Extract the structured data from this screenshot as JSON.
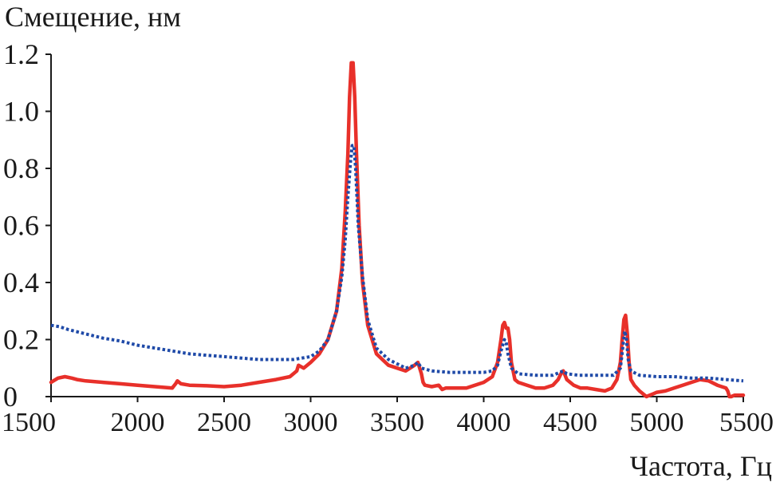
{
  "chart_data": {
    "type": "line",
    "title": "",
    "ylabel": "Смещение, нм",
    "xlabel": "Частота, Гц",
    "xlim": [
      1500,
      5500
    ],
    "ylim": [
      0,
      1.2
    ],
    "x_ticks": [
      "1500",
      "2000",
      "2500",
      "3000",
      "3500",
      "4000",
      "4500",
      "5000",
      "5500"
    ],
    "y_ticks": [
      "0",
      "0.2",
      "0.4",
      "0.6",
      "0.8",
      "1.0",
      "1.2"
    ],
    "grid": false,
    "legend": "none",
    "series": [
      {
        "color": "#e8302a",
        "style": "solid",
        "x": [
          1500,
          1540,
          1580,
          1620,
          1650,
          1700,
          1800,
          1900,
          2000,
          2100,
          2200,
          2220,
          2230,
          2250,
          2300,
          2400,
          2500,
          2600,
          2700,
          2800,
          2880,
          2920,
          2930,
          2960,
          3000,
          3050,
          3100,
          3150,
          3180,
          3200,
          3215,
          3225,
          3235,
          3245,
          3255,
          3265,
          3280,
          3300,
          3330,
          3380,
          3450,
          3550,
          3600,
          3620,
          3640,
          3650,
          3660,
          3700,
          3740,
          3760,
          3780,
          3800,
          3900,
          4000,
          4050,
          4080,
          4100,
          4110,
          4120,
          4130,
          4140,
          4150,
          4160,
          4180,
          4200,
          4250,
          4300,
          4350,
          4400,
          4430,
          4450,
          4460,
          4480,
          4520,
          4560,
          4600,
          4650,
          4700,
          4740,
          4770,
          4790,
          4800,
          4810,
          4820,
          4830,
          4840,
          4850,
          4870,
          4900,
          4920,
          4940,
          4960,
          4980,
          5000,
          5050,
          5100,
          5150,
          5200,
          5250,
          5300,
          5350,
          5400,
          5410,
          5420,
          5430,
          5450,
          5500
        ],
        "y": [
          0.05,
          0.065,
          0.07,
          0.065,
          0.06,
          0.055,
          0.05,
          0.045,
          0.04,
          0.035,
          0.03,
          0.045,
          0.055,
          0.045,
          0.04,
          0.038,
          0.035,
          0.04,
          0.05,
          0.06,
          0.07,
          0.09,
          0.11,
          0.1,
          0.12,
          0.15,
          0.2,
          0.3,
          0.45,
          0.65,
          0.85,
          1.05,
          1.17,
          1.17,
          1.05,
          0.85,
          0.6,
          0.4,
          0.25,
          0.15,
          0.11,
          0.09,
          0.11,
          0.12,
          0.08,
          0.05,
          0.04,
          0.035,
          0.04,
          0.025,
          0.03,
          0.03,
          0.03,
          0.05,
          0.07,
          0.12,
          0.2,
          0.25,
          0.26,
          0.24,
          0.24,
          0.2,
          0.12,
          0.06,
          0.05,
          0.04,
          0.03,
          0.03,
          0.04,
          0.06,
          0.085,
          0.09,
          0.06,
          0.04,
          0.03,
          0.03,
          0.025,
          0.02,
          0.03,
          0.06,
          0.12,
          0.2,
          0.27,
          0.285,
          0.22,
          0.12,
          0.06,
          0.04,
          0.02,
          0.01,
          0.0,
          0.005,
          0.01,
          0.015,
          0.02,
          0.03,
          0.04,
          0.05,
          0.06,
          0.055,
          0.04,
          0.03,
          0.02,
          0.0,
          0.0,
          0.005,
          0.005
        ]
      },
      {
        "color": "#1f4aa8",
        "style": "dotted",
        "x": [
          1500,
          1550,
          1600,
          1700,
          1800,
          1900,
          2000,
          2100,
          2200,
          2300,
          2400,
          2500,
          2600,
          2700,
          2800,
          2900,
          3000,
          3050,
          3100,
          3150,
          3180,
          3200,
          3215,
          3230,
          3240,
          3250,
          3260,
          3275,
          3300,
          3330,
          3380,
          3450,
          3550,
          3600,
          3620,
          3640,
          3700,
          3800,
          3900,
          4000,
          4050,
          4080,
          4100,
          4120,
          4130,
          4140,
          4160,
          4200,
          4300,
          4400,
          4440,
          4460,
          4480,
          4550,
          4650,
          4750,
          4790,
          4805,
          4815,
          4825,
          4835,
          4850,
          4900,
          5000,
          5100,
          5200,
          5300,
          5400,
          5500
        ],
        "y": [
          0.25,
          0.245,
          0.235,
          0.22,
          0.205,
          0.195,
          0.18,
          0.17,
          0.16,
          0.15,
          0.145,
          0.14,
          0.135,
          0.13,
          0.13,
          0.13,
          0.14,
          0.16,
          0.2,
          0.3,
          0.42,
          0.55,
          0.7,
          0.82,
          0.88,
          0.88,
          0.8,
          0.6,
          0.42,
          0.27,
          0.17,
          0.13,
          0.1,
          0.11,
          0.12,
          0.1,
          0.09,
          0.085,
          0.085,
          0.085,
          0.09,
          0.11,
          0.16,
          0.2,
          0.19,
          0.15,
          0.1,
          0.08,
          0.075,
          0.075,
          0.085,
          0.09,
          0.08,
          0.075,
          0.075,
          0.075,
          0.1,
          0.18,
          0.23,
          0.2,
          0.13,
          0.09,
          0.075,
          0.07,
          0.07,
          0.065,
          0.065,
          0.06,
          0.055
        ]
      }
    ]
  }
}
